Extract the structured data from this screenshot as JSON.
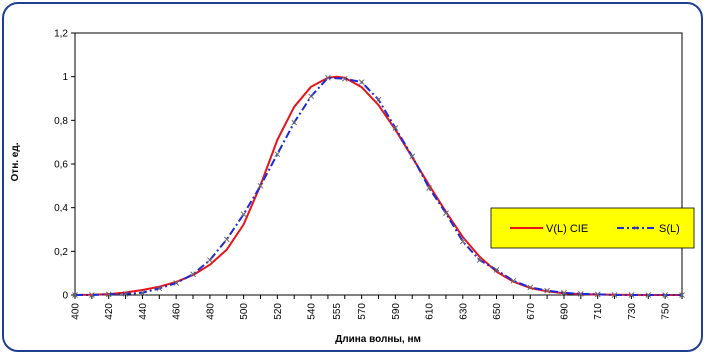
{
  "chart_data": {
    "type": "line",
    "xlabel": "Длина волны, нм",
    "ylabel": "Отн. ед.",
    "xlim": [
      400,
      760
    ],
    "ylim": [
      0,
      1.2
    ],
    "x_ticks": [
      "400",
      "420",
      "440",
      "460",
      "480",
      "500",
      "520",
      "540",
      "555",
      "570",
      "590",
      "610",
      "630",
      "650",
      "670",
      "690",
      "710",
      "730",
      "750"
    ],
    "y_ticks": [
      "0",
      "0,2",
      "0,4",
      "0,6",
      "0,8",
      "1",
      "1,2"
    ],
    "legend_position": "right",
    "series": [
      {
        "name": "V(L) CIE",
        "color": "#e8141b",
        "style": "solid",
        "marker": "none",
        "x": [
          400,
          410,
          420,
          430,
          440,
          450,
          460,
          470,
          480,
          490,
          500,
          510,
          520,
          530,
          540,
          550,
          555,
          560,
          570,
          580,
          590,
          600,
          610,
          620,
          630,
          640,
          650,
          660,
          670,
          680,
          690,
          700,
          710,
          720,
          730,
          740,
          750,
          760
        ],
        "y": [
          0.0004,
          0.0012,
          0.004,
          0.0116,
          0.023,
          0.038,
          0.06,
          0.091,
          0.139,
          0.208,
          0.323,
          0.503,
          0.71,
          0.862,
          0.954,
          0.995,
          1.0,
          0.995,
          0.952,
          0.87,
          0.757,
          0.631,
          0.503,
          0.381,
          0.265,
          0.175,
          0.107,
          0.061,
          0.032,
          0.017,
          0.0082,
          0.0041,
          0.0021,
          0.001,
          0.0005,
          0.0002,
          0.0001,
          0.0001
        ]
      },
      {
        "name": "S(L)",
        "color": "#1c2bd6",
        "style": "dash-dot",
        "marker": "x",
        "x": [
          400,
          410,
          420,
          430,
          440,
          450,
          460,
          470,
          480,
          490,
          500,
          510,
          520,
          530,
          540,
          550,
          560,
          570,
          580,
          590,
          600,
          610,
          620,
          630,
          640,
          650,
          660,
          670,
          680,
          690,
          700,
          710,
          720,
          730,
          740,
          750,
          760
        ],
        "y": [
          0.0,
          0.0,
          0.003,
          0.005,
          0.01,
          0.03,
          0.055,
          0.095,
          0.16,
          0.255,
          0.37,
          0.5,
          0.645,
          0.79,
          0.91,
          0.995,
          0.99,
          0.975,
          0.895,
          0.765,
          0.635,
          0.49,
          0.375,
          0.245,
          0.16,
          0.115,
          0.065,
          0.035,
          0.02,
          0.01,
          0.005,
          0.003,
          0.0,
          0.0,
          0.0,
          0.0,
          0.0
        ]
      }
    ]
  }
}
